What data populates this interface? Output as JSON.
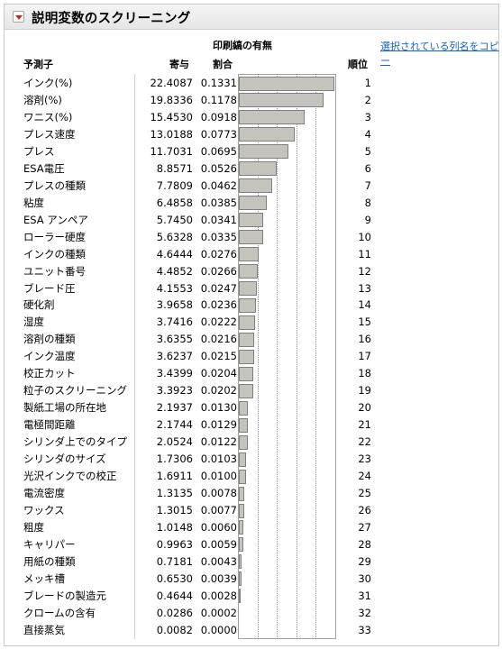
{
  "title": "説明変数のスクリーニング",
  "group_title": "印刷縞の有無",
  "copy_link": "選択されている列名をコピー",
  "headers": {
    "predictor": "予測子",
    "contribution": "寄与",
    "portion": "割合",
    "rank": "順位"
  },
  "rows": [
    {
      "name": "インク(%)",
      "contribution": "22.4087",
      "portion": "0.1331",
      "rank": "1"
    },
    {
      "name": "溶剤(%)",
      "contribution": "19.8336",
      "portion": "0.1178",
      "rank": "2"
    },
    {
      "name": "ワニス(%)",
      "contribution": "15.4530",
      "portion": "0.0918",
      "rank": "3"
    },
    {
      "name": "プレス速度",
      "contribution": "13.0188",
      "portion": "0.0773",
      "rank": "4"
    },
    {
      "name": "プレス",
      "contribution": "11.7031",
      "portion": "0.0695",
      "rank": "5"
    },
    {
      "name": "ESA電圧",
      "contribution": "8.8571",
      "portion": "0.0526",
      "rank": "6"
    },
    {
      "name": "プレスの種類",
      "contribution": "7.7809",
      "portion": "0.0462",
      "rank": "7"
    },
    {
      "name": "粘度",
      "contribution": "6.4858",
      "portion": "0.0385",
      "rank": "8"
    },
    {
      "name": "ESA アンペア",
      "contribution": "5.7450",
      "portion": "0.0341",
      "rank": "9"
    },
    {
      "name": "ローラー硬度",
      "contribution": "5.6328",
      "portion": "0.0335",
      "rank": "10"
    },
    {
      "name": "インクの種類",
      "contribution": "4.6444",
      "portion": "0.0276",
      "rank": "11"
    },
    {
      "name": "ユニット番号",
      "contribution": "4.4852",
      "portion": "0.0266",
      "rank": "12"
    },
    {
      "name": "ブレード圧",
      "contribution": "4.1553",
      "portion": "0.0247",
      "rank": "13"
    },
    {
      "name": "硬化剤",
      "contribution": "3.9658",
      "portion": "0.0236",
      "rank": "14"
    },
    {
      "name": "湿度",
      "contribution": "3.7416",
      "portion": "0.0222",
      "rank": "15"
    },
    {
      "name": "溶剤の種類",
      "contribution": "3.6355",
      "portion": "0.0216",
      "rank": "16"
    },
    {
      "name": "インク温度",
      "contribution": "3.6237",
      "portion": "0.0215",
      "rank": "17"
    },
    {
      "name": "校正カット",
      "contribution": "3.4399",
      "portion": "0.0204",
      "rank": "18"
    },
    {
      "name": "粒子のスクリーニング",
      "contribution": "3.3923",
      "portion": "0.0202",
      "rank": "19"
    },
    {
      "name": "製紙工場の所在地",
      "contribution": "2.1937",
      "portion": "0.0130",
      "rank": "20"
    },
    {
      "name": "電極間距離",
      "contribution": "2.1744",
      "portion": "0.0129",
      "rank": "21"
    },
    {
      "name": "シリンダ上でのタイプ",
      "contribution": "2.0524",
      "portion": "0.0122",
      "rank": "22"
    },
    {
      "name": "シリンダのサイズ",
      "contribution": "1.7306",
      "portion": "0.0103",
      "rank": "23"
    },
    {
      "name": "光沢インクでの校正",
      "contribution": "1.6911",
      "portion": "0.0100",
      "rank": "24"
    },
    {
      "name": "電流密度",
      "contribution": "1.3135",
      "portion": "0.0078",
      "rank": "25"
    },
    {
      "name": "ワックス",
      "contribution": "1.3015",
      "portion": "0.0077",
      "rank": "26"
    },
    {
      "name": "粗度",
      "contribution": "1.0148",
      "portion": "0.0060",
      "rank": "27"
    },
    {
      "name": "キャリパー",
      "contribution": "0.9963",
      "portion": "0.0059",
      "rank": "28"
    },
    {
      "name": "用紙の種類",
      "contribution": "0.7181",
      "portion": "0.0043",
      "rank": "29"
    },
    {
      "name": "メッキ槽",
      "contribution": "0.6530",
      "portion": "0.0039",
      "rank": "30"
    },
    {
      "name": "ブレードの製造元",
      "contribution": "0.4644",
      "portion": "0.0028",
      "rank": "31"
    },
    {
      "name": "クロームの含有",
      "contribution": "0.0286",
      "portion": "0.0002",
      "rank": "32"
    },
    {
      "name": "直接蒸気",
      "contribution": "0.0082",
      "portion": "0.0000",
      "rank": "33"
    }
  ],
  "bar_scale_max": 0.1331,
  "grid_fractions": [
    0.2,
    0.4,
    0.6,
    0.8
  ],
  "colors": {
    "bar_fill": "#c4c4bc",
    "bar_border": "#808080",
    "link": "#1a63c6",
    "toggle": "#d42020"
  }
}
